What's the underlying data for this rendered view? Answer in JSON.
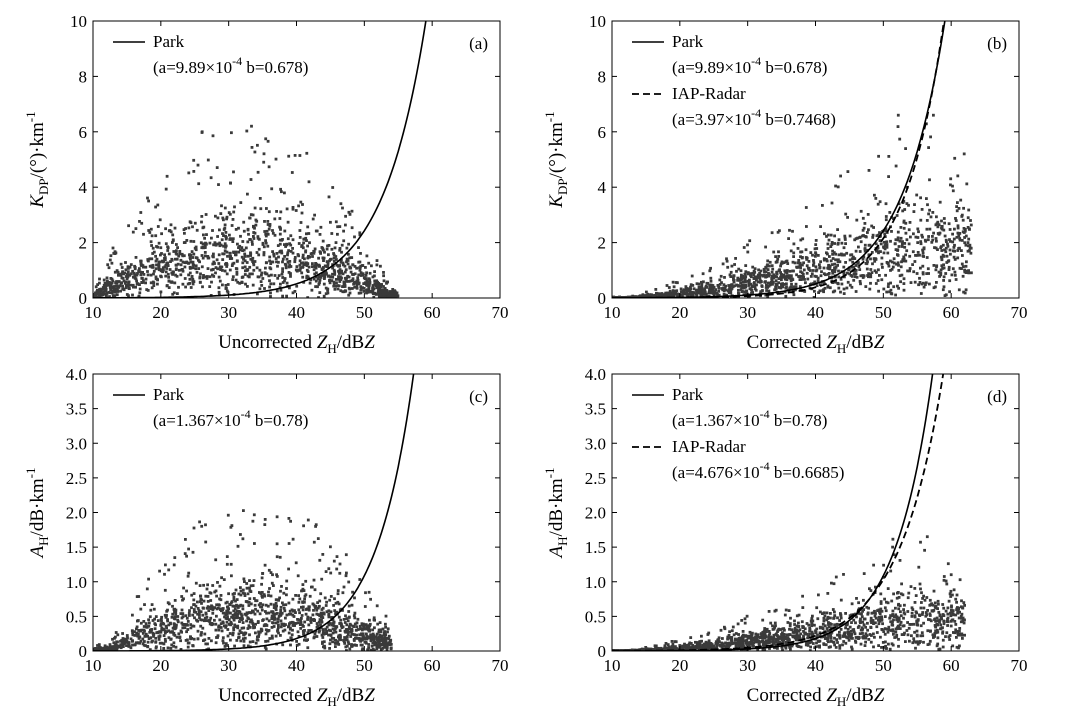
{
  "figure": {
    "colors": {
      "scatter": "#3a3a3a",
      "axis": "#000000",
      "line": "#000000"
    }
  },
  "chart_data": [
    {
      "type": "scatter",
      "panel_label": "(a)",
      "xlabel": {
        "prefix": "Uncorrected ",
        "var": "Z",
        "sub": "H",
        "unit": "/dB",
        "unit_italic": "Z"
      },
      "ylabel": {
        "var": "K",
        "sub": "DP",
        "unit": "/(°)·km",
        "sup": "-1"
      },
      "xlim": [
        10,
        70
      ],
      "ylim": [
        0,
        10
      ],
      "xticks": [
        10,
        20,
        30,
        40,
        50,
        60,
        70
      ],
      "yticks": [
        0,
        2,
        4,
        6,
        8,
        10
      ],
      "ytick_labels": [
        "0",
        "2",
        "4",
        "6",
        "8",
        "10"
      ],
      "legend_position": "top-left",
      "scatter_cloud": {
        "x_range": [
          10,
          55
        ],
        "y_max": 6.5,
        "center_x": 32,
        "shape": "dome"
      },
      "lines": [
        {
          "name": "Park",
          "style": "solid",
          "a_mant": "9.89",
          "a_exp": "-4",
          "b_str": "0.678",
          "a": 0.000989,
          "b": 0.678
        }
      ]
    },
    {
      "type": "scatter",
      "panel_label": "(b)",
      "xlabel": {
        "prefix": "Corrected ",
        "var": "Z",
        "sub": "H",
        "unit": "/dB",
        "unit_italic": "Z"
      },
      "ylabel": {
        "var": "K",
        "sub": "DP",
        "unit": "/(°)·km",
        "sup": "-1"
      },
      "xlim": [
        10,
        70
      ],
      "ylim": [
        0,
        10
      ],
      "xticks": [
        10,
        20,
        30,
        40,
        50,
        60,
        70
      ],
      "yticks": [
        0,
        2,
        4,
        6,
        8,
        10
      ],
      "ytick_labels": [
        "0",
        "2",
        "4",
        "6",
        "8",
        "10"
      ],
      "legend_position": "top-left",
      "scatter_cloud": {
        "x_range": [
          10,
          63
        ],
        "y_max": 6.6,
        "center_x": 48,
        "shape": "rising"
      },
      "lines": [
        {
          "name": "Park",
          "style": "solid",
          "a_mant": "9.89",
          "a_exp": "-4",
          "b_str": "0.678",
          "a": 0.000989,
          "b": 0.678
        },
        {
          "name": "IAP-Radar",
          "style": "dashed",
          "a_mant": "3.97",
          "a_exp": "-4",
          "b_str": "0.7468",
          "a": 0.000397,
          "b": 0.7468
        }
      ]
    },
    {
      "type": "scatter",
      "panel_label": "(c)",
      "xlabel": {
        "prefix": "Uncorrected ",
        "var": "Z",
        "sub": "H",
        "unit": "/dB",
        "unit_italic": "Z"
      },
      "ylabel": {
        "var": "A",
        "sub": "H",
        "unit": "/dB·km",
        "sup": "-1"
      },
      "xlim": [
        10,
        70
      ],
      "ylim": [
        0,
        4
      ],
      "xticks": [
        10,
        20,
        30,
        40,
        50,
        60,
        70
      ],
      "yticks": [
        0,
        0.5,
        1,
        1.5,
        2,
        2.5,
        3,
        3.5,
        4
      ],
      "ytick_labels": [
        "0",
        "0.5",
        "1.0",
        "1.5",
        "2.0",
        "2.5",
        "3.0",
        "3.5",
        "4.0"
      ],
      "legend_position": "top-left",
      "scatter_cloud": {
        "x_range": [
          10,
          54
        ],
        "y_max": 2.2,
        "center_x": 34,
        "shape": "dome"
      },
      "lines": [
        {
          "name": "Park",
          "style": "solid",
          "a_mant": "1.367",
          "a_exp": "-4",
          "b_str": "0.78",
          "a": 0.0001367,
          "b": 0.78
        }
      ]
    },
    {
      "type": "scatter",
      "panel_label": "(d)",
      "xlabel": {
        "prefix": "Corrected ",
        "var": "Z",
        "sub": "H",
        "unit": "/dB",
        "unit_italic": "Z"
      },
      "ylabel": {
        "var": "A",
        "sub": "H",
        "unit": "/dB·km",
        "sup": "-1"
      },
      "xlim": [
        10,
        70
      ],
      "ylim": [
        0,
        4
      ],
      "xticks": [
        10,
        20,
        30,
        40,
        50,
        60,
        70
      ],
      "yticks": [
        0,
        0.5,
        1,
        1.5,
        2,
        2.5,
        3,
        3.5,
        4
      ],
      "ytick_labels": [
        "0",
        "0.5",
        "1.0",
        "1.5",
        "2.0",
        "2.5",
        "3.0",
        "3.5",
        "4.0"
      ],
      "legend_position": "top-left",
      "scatter_cloud": {
        "x_range": [
          10,
          62
        ],
        "y_max": 1.65,
        "center_x": 48,
        "shape": "rising"
      },
      "lines": [
        {
          "name": "Park",
          "style": "solid",
          "a_mant": "1.367",
          "a_exp": "-4",
          "b_str": "0.78",
          "a": 0.0001367,
          "b": 0.78
        },
        {
          "name": "IAP-Radar",
          "style": "dashed",
          "a_mant": "4.676",
          "a_exp": "-4",
          "b_str": "0.6685",
          "a": 0.0004676,
          "b": 0.6685
        }
      ]
    }
  ]
}
